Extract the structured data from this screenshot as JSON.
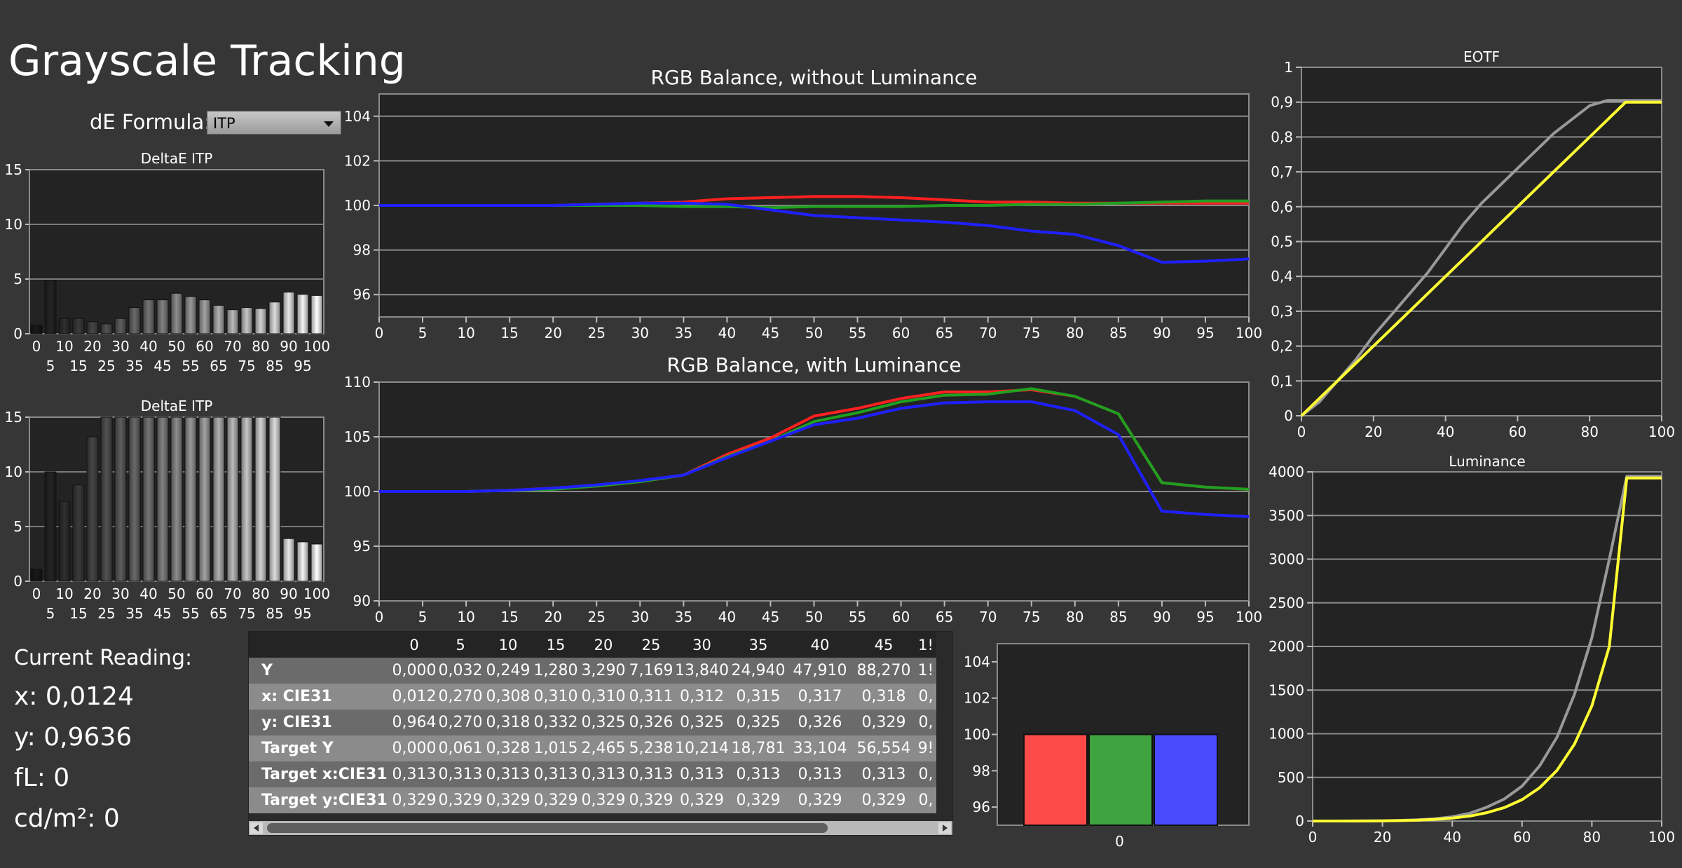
{
  "page": {
    "title": "Grayscale Tracking"
  },
  "de_formula": {
    "label": "dE Formula:",
    "value": "ITP"
  },
  "current_reading": {
    "heading": "Current Reading:",
    "x": "x: 0,0124",
    "y": "y: 0,9636",
    "fl": "fL: 0",
    "cdm2": "cd/m²: 0"
  },
  "chart_data": [
    {
      "id": "deltae_1",
      "type": "bar",
      "title": "DeltaE ITP",
      "categories": [
        0,
        5,
        10,
        15,
        20,
        25,
        30,
        35,
        40,
        45,
        50,
        55,
        60,
        65,
        70,
        75,
        80,
        85,
        90,
        95,
        100
      ],
      "values": [
        0.8,
        4.9,
        1.4,
        1.4,
        1.1,
        0.9,
        1.4,
        2.4,
        3.1,
        3.1,
        3.7,
        3.4,
        3.1,
        2.6,
        2.2,
        2.4,
        2.3,
        2.9,
        3.8,
        3.6,
        3.5
      ],
      "ylim": [
        0,
        15
      ],
      "yticks": [
        0,
        5,
        10,
        15
      ],
      "xticks_top": [
        "0",
        "10",
        "20",
        "30",
        "40",
        "50",
        "60",
        "70",
        "80",
        "90",
        "100"
      ],
      "xticks_bottom": [
        "5",
        "15",
        "25",
        "35",
        "45",
        "55",
        "65",
        "75",
        "85",
        "95"
      ]
    },
    {
      "id": "deltae_2",
      "type": "bar",
      "title": "DeltaE ITP",
      "categories": [
        0,
        5,
        10,
        15,
        20,
        25,
        30,
        35,
        40,
        45,
        50,
        55,
        60,
        65,
        70,
        75,
        80,
        85,
        90,
        95,
        100
      ],
      "values": [
        1.1,
        10.0,
        7.3,
        8.8,
        13.2,
        15,
        15,
        15,
        15,
        15,
        15,
        15,
        15,
        15,
        15,
        15,
        15,
        15,
        3.9,
        3.6,
        3.4
      ],
      "ylim": [
        0,
        15
      ],
      "yticks": [
        0,
        5,
        10,
        15
      ],
      "xticks_top": [
        "0",
        "10",
        "20",
        "30",
        "40",
        "50",
        "60",
        "70",
        "80",
        "90",
        "100"
      ],
      "xticks_bottom": [
        "5",
        "15",
        "25",
        "35",
        "45",
        "55",
        "65",
        "75",
        "85",
        "95"
      ]
    },
    {
      "id": "rgb_no_lum",
      "type": "line",
      "title": "RGB Balance, without Luminance",
      "x": [
        0,
        5,
        10,
        15,
        20,
        25,
        30,
        35,
        40,
        45,
        50,
        55,
        60,
        65,
        70,
        75,
        80,
        85,
        90,
        95,
        100
      ],
      "series": [
        {
          "color": "#ff2020",
          "values": [
            100,
            100,
            100,
            100,
            100,
            100.05,
            100.1,
            100.15,
            100.3,
            100.35,
            100.4,
            100.4,
            100.35,
            100.25,
            100.15,
            100.15,
            100.1,
            100.1,
            100.1,
            100.1,
            100.1
          ]
        },
        {
          "color": "#20a020",
          "values": [
            100,
            100,
            100,
            100,
            100,
            100,
            100,
            99.95,
            99.95,
            99.9,
            99.95,
            99.95,
            99.95,
            100,
            100,
            100.05,
            100.05,
            100.1,
            100.15,
            100.2,
            100.2
          ]
        },
        {
          "color": "#2020ff",
          "values": [
            100,
            100,
            100,
            100,
            100,
            100.05,
            100.1,
            100.1,
            100.05,
            99.8,
            99.55,
            99.45,
            99.35,
            99.25,
            99.1,
            98.85,
            98.7,
            98.2,
            97.45,
            97.5,
            97.6
          ]
        }
      ],
      "ylim": [
        95,
        105
      ],
      "yticks": [
        96,
        98,
        100,
        102,
        104
      ],
      "xticks": [
        "0",
        "5",
        "10",
        "15",
        "20",
        "25",
        "30",
        "35",
        "40",
        "45",
        "50",
        "55",
        "60",
        "65",
        "70",
        "75",
        "80",
        "85",
        "90",
        "95",
        "100"
      ]
    },
    {
      "id": "rgb_lum",
      "type": "line",
      "title": "RGB Balance, with Luminance",
      "x": [
        0,
        5,
        10,
        15,
        20,
        25,
        30,
        35,
        40,
        45,
        50,
        55,
        60,
        65,
        70,
        75,
        80,
        85,
        90,
        95,
        100
      ],
      "series": [
        {
          "color": "#ff2020",
          "values": [
            100,
            100,
            100,
            100.1,
            100.3,
            100.5,
            100.9,
            101.5,
            103.4,
            104.9,
            106.9,
            107.6,
            108.5,
            109.1,
            109.1,
            109.3,
            108.7,
            107.1,
            100.8,
            100.4,
            100.2
          ]
        },
        {
          "color": "#20a020",
          "values": [
            100,
            100,
            100,
            100.1,
            100.2,
            100.5,
            100.9,
            101.5,
            103.2,
            104.6,
            106.4,
            107.2,
            108.2,
            108.8,
            108.9,
            109.4,
            108.7,
            107.1,
            100.8,
            100.4,
            100.2
          ]
        },
        {
          "color": "#2020ff",
          "values": [
            100,
            100,
            100,
            100.1,
            100.3,
            100.6,
            101.0,
            101.5,
            103.1,
            104.6,
            106.1,
            106.7,
            107.6,
            108.1,
            108.2,
            108.2,
            107.4,
            105.2,
            98.2,
            97.9,
            97.7
          ]
        }
      ],
      "ylim": [
        90,
        110
      ],
      "yticks": [
        90,
        95,
        100,
        105,
        110
      ],
      "xticks": [
        "0",
        "5",
        "10",
        "15",
        "20",
        "25",
        "30",
        "35",
        "40",
        "45",
        "50",
        "55",
        "60",
        "65",
        "70",
        "75",
        "80",
        "85",
        "90",
        "95",
        "100"
      ]
    },
    {
      "id": "eotf",
      "type": "line",
      "title": "EOTF",
      "x": [
        0,
        5,
        10,
        15,
        20,
        25,
        30,
        35,
        40,
        45,
        50,
        55,
        60,
        65,
        70,
        75,
        80,
        85,
        90,
        95,
        100
      ],
      "series": [
        {
          "color": "#999999",
          "values": [
            0,
            0.04,
            0.1,
            0.16,
            0.23,
            0.29,
            0.35,
            0.41,
            0.48,
            0.55,
            0.61,
            0.66,
            0.71,
            0.76,
            0.81,
            0.85,
            0.89,
            0.905,
            0.905,
            0.905,
            0.905
          ]
        },
        {
          "color": "#ffff33",
          "values": [
            0,
            0.05,
            0.1,
            0.15,
            0.2,
            0.25,
            0.3,
            0.35,
            0.4,
            0.45,
            0.5,
            0.55,
            0.6,
            0.65,
            0.7,
            0.75,
            0.8,
            0.85,
            0.9,
            0.9,
            0.9
          ]
        }
      ],
      "ylim": [
        0,
        1
      ],
      "yticks": [
        "0",
        "0,1",
        "0,2",
        "0,3",
        "0,4",
        "0,5",
        "0,6",
        "0,7",
        "0,8",
        "0,9",
        "1"
      ],
      "xticks": [
        "0",
        "20",
        "40",
        "60",
        "80",
        "100"
      ]
    },
    {
      "id": "luminance",
      "type": "line",
      "title": "Luminance",
      "x": [
        0,
        5,
        10,
        15,
        20,
        25,
        30,
        35,
        40,
        45,
        50,
        55,
        60,
        65,
        70,
        75,
        80,
        85,
        90,
        95,
        100
      ],
      "series": [
        {
          "color": "#999999",
          "values": [
            0,
            0,
            1,
            1,
            3,
            7,
            14,
            25,
            48,
            88,
            160,
            255,
            400,
            630,
            960,
            1450,
            2100,
            3000,
            3950,
            3950,
            3950
          ]
        },
        {
          "color": "#ffff33",
          "values": [
            0,
            0,
            0,
            1,
            2,
            5,
            10,
            19,
            33,
            57,
            96,
            155,
            245,
            380,
            580,
            880,
            1320,
            2000,
            3930,
            3930,
            3930
          ]
        }
      ],
      "ylim": [
        0,
        4000
      ],
      "yticks": [
        0,
        500,
        1000,
        1500,
        2000,
        2500,
        3000,
        3500,
        4000
      ],
      "xticks": [
        "0",
        "20",
        "40",
        "60",
        "80",
        "100"
      ]
    },
    {
      "id": "current_rgb",
      "type": "bar",
      "categories": [
        "0"
      ],
      "series": [
        {
          "color": "#ff4a4a",
          "values": [
            100
          ]
        },
        {
          "color": "#3fa33f",
          "values": [
            100
          ]
        },
        {
          "color": "#4a4aff",
          "values": [
            100
          ]
        }
      ],
      "ylim": [
        95,
        105
      ],
      "yticks": [
        96,
        98,
        100,
        102,
        104
      ],
      "xticks": [
        "0"
      ]
    }
  ],
  "table": {
    "columns": [
      "0",
      "5",
      "10",
      "15",
      "20",
      "25",
      "30",
      "35",
      "40",
      "45",
      "1!"
    ],
    "rows": [
      {
        "label": "Y",
        "values": [
          "0,000",
          "0,032",
          "0,249",
          "1,280",
          "3,290",
          "7,169",
          "13,840",
          "24,940",
          "47,910",
          "88,270",
          "1!"
        ]
      },
      {
        "label": "x: CIE31",
        "values": [
          "0,012",
          "0,270",
          "0,308",
          "0,310",
          "0,310",
          "0,311",
          "0,312",
          "0,315",
          "0,317",
          "0,318",
          "0,"
        ]
      },
      {
        "label": "y: CIE31",
        "values": [
          "0,964",
          "0,270",
          "0,318",
          "0,332",
          "0,325",
          "0,326",
          "0,325",
          "0,325",
          "0,326",
          "0,329",
          "0,"
        ]
      },
      {
        "label": "Target Y",
        "values": [
          "0,000",
          "0,061",
          "0,328",
          "1,015",
          "2,465",
          "5,238",
          "10,214",
          "18,781",
          "33,104",
          "56,554",
          "9!"
        ]
      },
      {
        "label": "Target x:CIE31",
        "values": [
          "0,313",
          "0,313",
          "0,313",
          "0,313",
          "0,313",
          "0,313",
          "0,313",
          "0,313",
          "0,313",
          "0,313",
          "0,"
        ]
      },
      {
        "label": "Target y:CIE31",
        "values": [
          "0,329",
          "0,329",
          "0,329",
          "0,329",
          "0,329",
          "0,329",
          "0,329",
          "0,329",
          "0,329",
          "0,329",
          "0,"
        ]
      }
    ]
  }
}
